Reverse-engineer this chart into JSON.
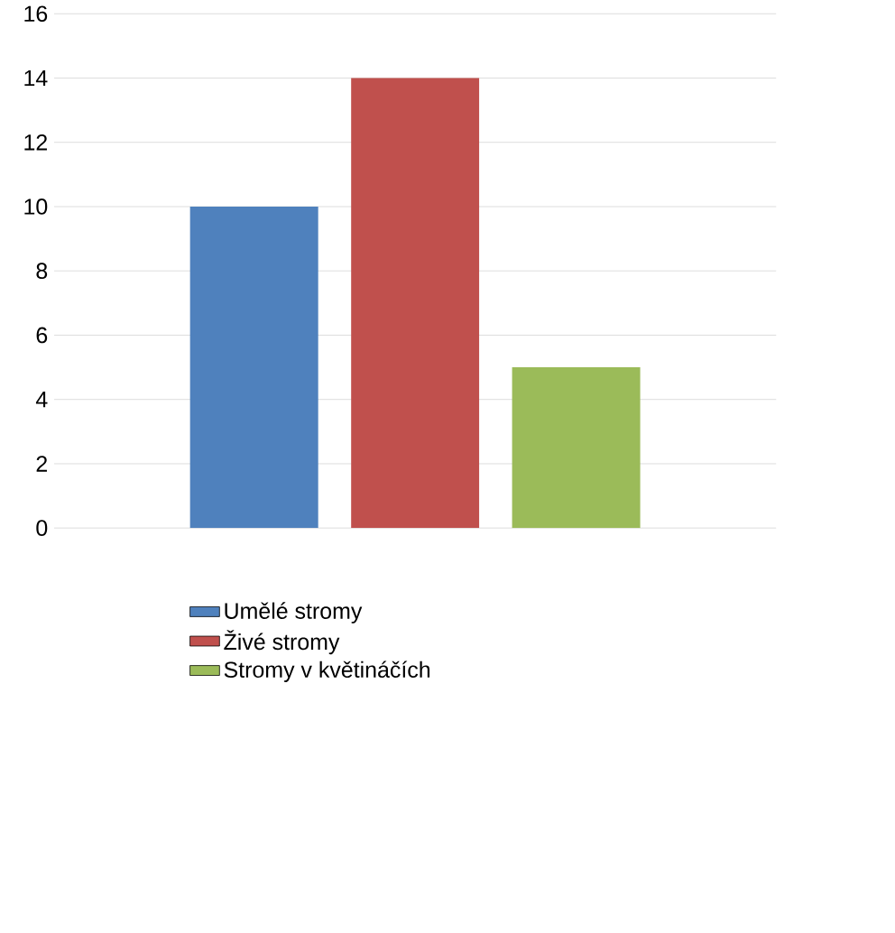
{
  "chart_data": {
    "type": "bar",
    "categories": [
      null
    ],
    "series": [
      {
        "name": "Umělé stromy",
        "color": "#4f81bd",
        "values": [
          10
        ]
      },
      {
        "name": "Živé stromy",
        "color": "#c0504d",
        "values": [
          14
        ]
      },
      {
        "name": "Stromy v květináčích",
        "color": "#9bbb59",
        "values": [
          5
        ]
      }
    ],
    "ylim": [
      0,
      16
    ],
    "yticks": [
      0,
      2,
      4,
      6,
      8,
      10,
      12,
      14,
      16
    ],
    "grid": "y",
    "legend": "bottom"
  }
}
